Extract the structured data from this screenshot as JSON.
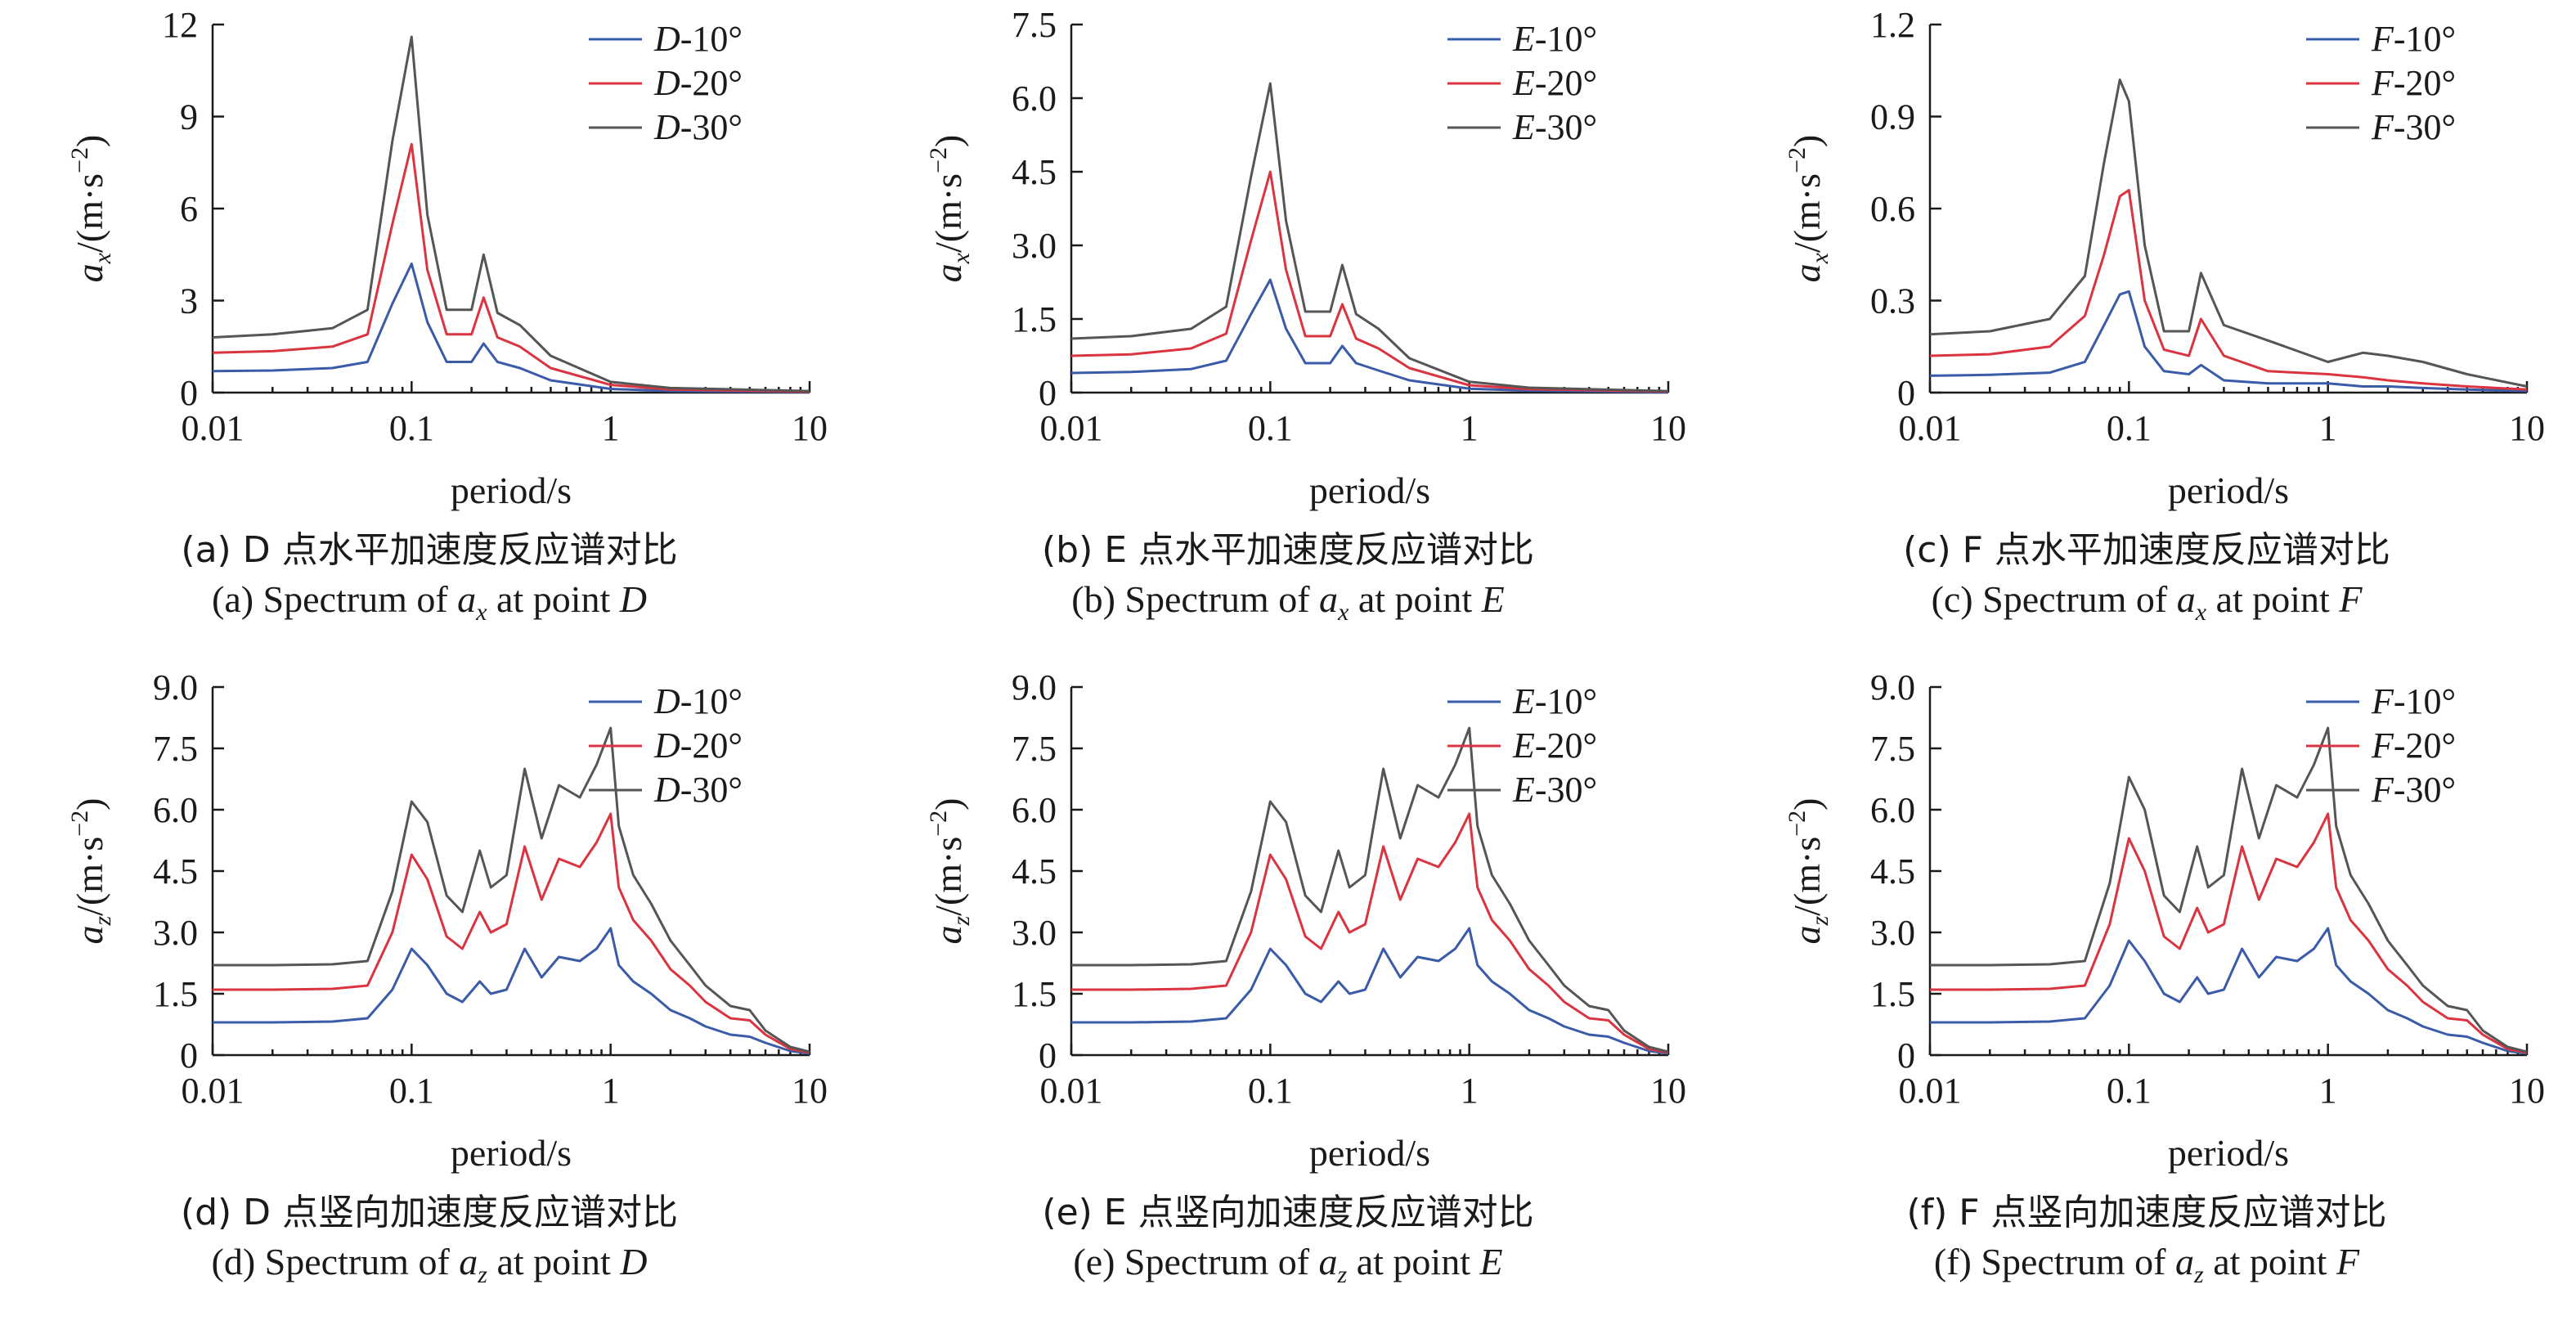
{
  "chart_data": [
    {
      "id": "a",
      "type": "line",
      "xscale": "log",
      "xlim": [
        0.01,
        10
      ],
      "ylim": [
        0,
        12
      ],
      "xlabel": "period/s",
      "ylabel": "a_x/(m·s^-2)",
      "xticks": [
        "0.01",
        "0.1",
        "1",
        "10"
      ],
      "yticks": [
        "0",
        "3",
        "6",
        "9",
        "12"
      ],
      "legend_position": "top-right",
      "x": [
        0.01,
        0.02,
        0.04,
        0.06,
        0.08,
        0.1,
        0.12,
        0.15,
        0.2,
        0.23,
        0.27,
        0.35,
        0.5,
        1,
        2,
        10
      ],
      "series": [
        {
          "name": "D-10°",
          "color": "#3a5ba8",
          "values": [
            0.7,
            0.72,
            0.8,
            1.0,
            2.9,
            4.2,
            2.3,
            1.0,
            1.0,
            1.6,
            1.0,
            0.8,
            0.4,
            0.12,
            0.05,
            0.02
          ]
        },
        {
          "name": "D-20°",
          "color": "#d9343f",
          "values": [
            1.3,
            1.35,
            1.5,
            1.9,
            5.5,
            8.1,
            4.0,
            1.9,
            1.9,
            3.1,
            1.8,
            1.5,
            0.8,
            0.25,
            0.1,
            0.03
          ]
        },
        {
          "name": "D-30°",
          "color": "#555555",
          "values": [
            1.8,
            1.9,
            2.1,
            2.7,
            8.2,
            11.6,
            5.8,
            2.7,
            2.7,
            4.5,
            2.6,
            2.2,
            1.2,
            0.35,
            0.15,
            0.05
          ]
        }
      ],
      "caption_cn": "(a) D 点水平加速度反应谱对比",
      "caption_en": "(a) Spectrum of a_x at point D"
    },
    {
      "id": "b",
      "type": "line",
      "xscale": "log",
      "xlim": [
        0.01,
        10
      ],
      "ylim": [
        0,
        7.5
      ],
      "xlabel": "period/s",
      "ylabel": "a_x/(m·s^-2)",
      "xticks": [
        "0.01",
        "0.1",
        "1",
        "10"
      ],
      "yticks": [
        "0",
        "1.5",
        "3.0",
        "4.5",
        "6.0",
        "7.5"
      ],
      "legend_position": "top-right",
      "x": [
        0.01,
        0.02,
        0.04,
        0.06,
        0.08,
        0.1,
        0.12,
        0.15,
        0.2,
        0.23,
        0.27,
        0.35,
        0.5,
        1,
        2,
        10
      ],
      "series": [
        {
          "name": "E-10°",
          "color": "#3a5ba8",
          "values": [
            0.4,
            0.42,
            0.48,
            0.65,
            1.6,
            2.3,
            1.3,
            0.6,
            0.6,
            0.95,
            0.6,
            0.45,
            0.25,
            0.08,
            0.04,
            0.01
          ]
        },
        {
          "name": "E-20°",
          "color": "#d9343f",
          "values": [
            0.75,
            0.78,
            0.9,
            1.2,
            3.1,
            4.5,
            2.5,
            1.15,
            1.15,
            1.8,
            1.1,
            0.9,
            0.5,
            0.15,
            0.07,
            0.02
          ]
        },
        {
          "name": "E-30°",
          "color": "#555555",
          "values": [
            1.1,
            1.15,
            1.3,
            1.75,
            4.4,
            6.3,
            3.5,
            1.65,
            1.65,
            2.6,
            1.6,
            1.3,
            0.7,
            0.22,
            0.1,
            0.03
          ]
        }
      ],
      "caption_cn": "(b) E 点水平加速度反应谱对比",
      "caption_en": "(b) Spectrum of a_x at point E"
    },
    {
      "id": "c",
      "type": "line",
      "xscale": "log",
      "xlim": [
        0.01,
        10
      ],
      "ylim": [
        0,
        1.2
      ],
      "xlabel": "period/s",
      "ylabel": "a_x/(m·s^-2)",
      "xticks": [
        "0.01",
        "0.1",
        "1",
        "10"
      ],
      "yticks": [
        "0",
        "0.3",
        "0.6",
        "0.9",
        "1.2"
      ],
      "legend_position": "top-right",
      "x": [
        0.01,
        0.02,
        0.04,
        0.06,
        0.075,
        0.09,
        0.1,
        0.12,
        0.15,
        0.2,
        0.23,
        0.3,
        0.5,
        1,
        1.5,
        2,
        3,
        5,
        10
      ],
      "series": [
        {
          "name": "F-10°",
          "color": "#3a5ba8",
          "values": [
            0.055,
            0.058,
            0.065,
            0.1,
            0.22,
            0.32,
            0.33,
            0.15,
            0.07,
            0.06,
            0.09,
            0.04,
            0.03,
            0.03,
            0.02,
            0.02,
            0.015,
            0.01,
            0.005
          ]
        },
        {
          "name": "F-20°",
          "color": "#d9343f",
          "values": [
            0.12,
            0.125,
            0.15,
            0.25,
            0.45,
            0.64,
            0.66,
            0.3,
            0.14,
            0.12,
            0.24,
            0.12,
            0.07,
            0.06,
            0.05,
            0.04,
            0.03,
            0.02,
            0.01
          ]
        },
        {
          "name": "F-30°",
          "color": "#555555",
          "values": [
            0.19,
            0.2,
            0.24,
            0.38,
            0.75,
            1.02,
            0.95,
            0.48,
            0.2,
            0.2,
            0.39,
            0.22,
            0.17,
            0.1,
            0.13,
            0.12,
            0.1,
            0.06,
            0.02
          ]
        }
      ],
      "caption_cn": "(c) F 点水平加速度反应谱对比",
      "caption_en": "(c) Spectrum of a_x at point F"
    },
    {
      "id": "d",
      "type": "line",
      "xscale": "log",
      "xlim": [
        0.01,
        10
      ],
      "ylim": [
        0,
        9
      ],
      "xlabel": "period/s",
      "ylabel": "a_z/(m·s^-2)",
      "xticks": [
        "0.01",
        "0.1",
        "1",
        "10"
      ],
      "yticks": [
        "0",
        "1.5",
        "3.0",
        "4.5",
        "6.0",
        "7.5",
        "9.0"
      ],
      "legend_position": "top-right",
      "x": [
        0.01,
        0.02,
        0.04,
        0.06,
        0.08,
        0.1,
        0.12,
        0.15,
        0.18,
        0.22,
        0.25,
        0.3,
        0.37,
        0.45,
        0.55,
        0.7,
        0.85,
        1.0,
        1.1,
        1.3,
        1.6,
        2.0,
        2.5,
        3.0,
        4.0,
        5.0,
        6.0,
        8.0,
        10.0
      ],
      "series": [
        {
          "name": "D-10°",
          "color": "#3a5ba8",
          "values": [
            0.8,
            0.8,
            0.82,
            0.9,
            1.6,
            2.6,
            2.2,
            1.5,
            1.3,
            1.8,
            1.5,
            1.6,
            2.6,
            1.9,
            2.4,
            2.3,
            2.6,
            3.1,
            2.2,
            1.8,
            1.5,
            1.1,
            0.9,
            0.7,
            0.5,
            0.45,
            0.3,
            0.1,
            0.04
          ]
        },
        {
          "name": "D-20°",
          "color": "#d9343f",
          "values": [
            1.6,
            1.6,
            1.62,
            1.7,
            3.0,
            4.9,
            4.3,
            2.9,
            2.6,
            3.5,
            3.0,
            3.2,
            5.1,
            3.8,
            4.8,
            4.6,
            5.2,
            5.9,
            4.1,
            3.3,
            2.8,
            2.1,
            1.7,
            1.3,
            0.9,
            0.85,
            0.5,
            0.15,
            0.06
          ]
        },
        {
          "name": "D-30°",
          "color": "#555555",
          "values": [
            2.2,
            2.2,
            2.22,
            2.3,
            4.0,
            6.2,
            5.7,
            3.9,
            3.5,
            5.0,
            4.1,
            4.4,
            7.0,
            5.3,
            6.6,
            6.3,
            7.1,
            8.0,
            5.6,
            4.4,
            3.7,
            2.8,
            2.2,
            1.7,
            1.2,
            1.1,
            0.6,
            0.2,
            0.08
          ]
        }
      ],
      "caption_cn": "(d) D 点竖向加速度反应谱对比",
      "caption_en": "(d) Spectrum of a_z at point D"
    },
    {
      "id": "e",
      "type": "line",
      "xscale": "log",
      "xlim": [
        0.01,
        10
      ],
      "ylim": [
        0,
        9
      ],
      "xlabel": "period/s",
      "ylabel": "a_z/(m·s^-2)",
      "xticks": [
        "0.01",
        "0.1",
        "1",
        "10"
      ],
      "yticks": [
        "0",
        "1.5",
        "3.0",
        "4.5",
        "6.0",
        "7.5",
        "9.0"
      ],
      "legend_position": "top-right",
      "x": [
        0.01,
        0.02,
        0.04,
        0.06,
        0.08,
        0.1,
        0.12,
        0.15,
        0.18,
        0.22,
        0.25,
        0.3,
        0.37,
        0.45,
        0.55,
        0.7,
        0.85,
        1.0,
        1.1,
        1.3,
        1.6,
        2.0,
        2.5,
        3.0,
        4.0,
        5.0,
        6.0,
        8.0,
        10.0
      ],
      "series": [
        {
          "name": "E-10°",
          "color": "#3a5ba8",
          "values": [
            0.8,
            0.8,
            0.82,
            0.9,
            1.6,
            2.6,
            2.2,
            1.5,
            1.3,
            1.8,
            1.5,
            1.6,
            2.6,
            1.9,
            2.4,
            2.3,
            2.6,
            3.1,
            2.2,
            1.8,
            1.5,
            1.1,
            0.9,
            0.7,
            0.5,
            0.45,
            0.3,
            0.1,
            0.04
          ]
        },
        {
          "name": "E-20°",
          "color": "#d9343f",
          "values": [
            1.6,
            1.6,
            1.62,
            1.7,
            3.0,
            4.9,
            4.3,
            2.9,
            2.6,
            3.5,
            3.0,
            3.2,
            5.1,
            3.8,
            4.8,
            4.6,
            5.2,
            5.9,
            4.1,
            3.3,
            2.8,
            2.1,
            1.7,
            1.3,
            0.9,
            0.85,
            0.5,
            0.15,
            0.06
          ]
        },
        {
          "name": "E-30°",
          "color": "#555555",
          "values": [
            2.2,
            2.2,
            2.22,
            2.3,
            4.0,
            6.2,
            5.7,
            3.9,
            3.5,
            5.0,
            4.1,
            4.4,
            7.0,
            5.3,
            6.6,
            6.3,
            7.1,
            8.0,
            5.6,
            4.4,
            3.7,
            2.8,
            2.2,
            1.7,
            1.2,
            1.1,
            0.6,
            0.2,
            0.08
          ]
        }
      ],
      "caption_cn": "(e) E 点竖向加速度反应谱对比",
      "caption_en": "(e) Spectrum of a_z at point E"
    },
    {
      "id": "f",
      "type": "line",
      "xscale": "log",
      "xlim": [
        0.01,
        10
      ],
      "ylim": [
        0,
        9
      ],
      "xlabel": "period/s",
      "ylabel": "a_z/(m·s^-2)",
      "xticks": [
        "0.01",
        "0.1",
        "1",
        "10"
      ],
      "yticks": [
        "0",
        "1.5",
        "3.0",
        "4.5",
        "6.0",
        "7.5",
        "9.0"
      ],
      "legend_position": "top-right",
      "x": [
        0.01,
        0.02,
        0.04,
        0.06,
        0.08,
        0.1,
        0.12,
        0.15,
        0.18,
        0.22,
        0.25,
        0.3,
        0.37,
        0.45,
        0.55,
        0.7,
        0.85,
        1.0,
        1.1,
        1.3,
        1.6,
        2.0,
        2.5,
        3.0,
        4.0,
        5.0,
        6.0,
        8.0,
        10.0
      ],
      "series": [
        {
          "name": "F-10°",
          "color": "#3a5ba8",
          "values": [
            0.8,
            0.8,
            0.82,
            0.9,
            1.7,
            2.8,
            2.3,
            1.5,
            1.3,
            1.9,
            1.5,
            1.6,
            2.6,
            1.9,
            2.4,
            2.3,
            2.6,
            3.1,
            2.2,
            1.8,
            1.5,
            1.1,
            0.9,
            0.7,
            0.5,
            0.45,
            0.3,
            0.1,
            0.04
          ]
        },
        {
          "name": "F-20°",
          "color": "#d9343f",
          "values": [
            1.6,
            1.6,
            1.62,
            1.7,
            3.2,
            5.3,
            4.5,
            2.9,
            2.6,
            3.6,
            3.0,
            3.2,
            5.1,
            3.8,
            4.8,
            4.6,
            5.2,
            5.9,
            4.1,
            3.3,
            2.8,
            2.1,
            1.7,
            1.3,
            0.9,
            0.85,
            0.5,
            0.15,
            0.06
          ]
        },
        {
          "name": "F-30°",
          "color": "#555555",
          "values": [
            2.2,
            2.2,
            2.22,
            2.3,
            4.2,
            6.8,
            6.0,
            3.9,
            3.5,
            5.1,
            4.1,
            4.4,
            7.0,
            5.3,
            6.6,
            6.3,
            7.1,
            8.0,
            5.6,
            4.4,
            3.7,
            2.8,
            2.2,
            1.7,
            1.2,
            1.1,
            0.6,
            0.2,
            0.08
          ]
        }
      ],
      "caption_cn": "(f) F 点竖向加速度反应谱对比",
      "caption_en": "(f) Spectrum of a_z at point F"
    }
  ]
}
